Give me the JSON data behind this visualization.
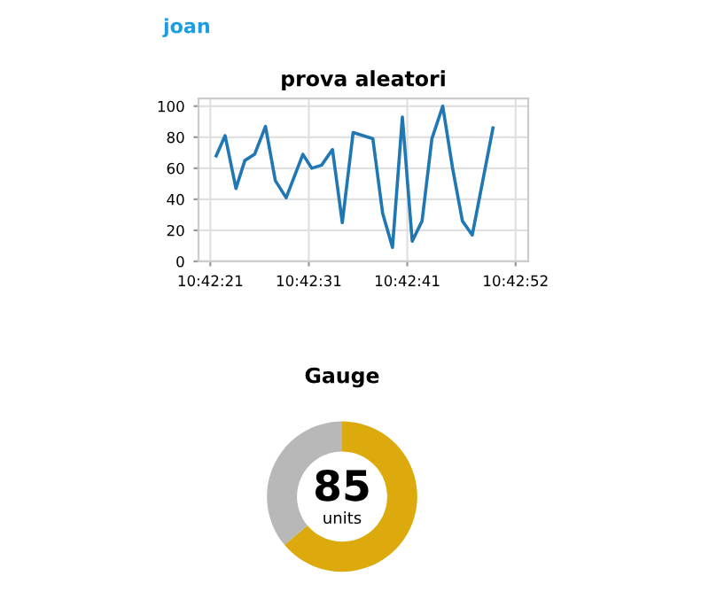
{
  "chart_data": [
    {
      "type": "line",
      "title": "prova aleatori",
      "annotations": [
        "joan"
      ],
      "x": [
        10.706,
        10.70625,
        10.706556,
        10.706806,
        10.707083,
        10.707389,
        10.707667,
        10.707972,
        10.708444,
        10.708694,
        10.708972,
        10.709278,
        10.709556,
        10.709861,
        10.710139,
        10.710417,
        10.710694,
        10.710972,
        10.71125,
        10.711528,
        10.711806,
        10.712083,
        10.712389,
        10.712667,
        10.712944,
        10.713222,
        10.713806
      ],
      "series": [
        {
          "color": "#1f77b4",
          "values": [
            68,
            81,
            47,
            65,
            69,
            87,
            52,
            41,
            69,
            60,
            62,
            72,
            25,
            83,
            81,
            79,
            31,
            9,
            93,
            13,
            26,
            79,
            100,
            60,
            26,
            17,
            86
          ]
        }
      ],
      "xlim": [
        10.7055,
        10.7148
      ],
      "xticks": [
        {
          "value": 10.705833,
          "label": "10:42:21"
        },
        {
          "value": 10.708611,
          "label": "10:42:31"
        },
        {
          "value": 10.711389,
          "label": "10:42:41"
        },
        {
          "value": 10.714444,
          "label": "10:42:52"
        }
      ],
      "ylim": [
        0,
        105
      ],
      "yticks": [
        0,
        20,
        40,
        60,
        80,
        100
      ],
      "grid": true,
      "legend": false
    },
    {
      "type": "donut",
      "title": "Gauge",
      "categories": [
        null,
        null
      ],
      "values": [
        85,
        48
      ],
      "colors": [
        "#dcaa0c",
        "#b8b8b8"
      ],
      "value_labels": [
        "85",
        null
      ],
      "annotations": [
        "units"
      ]
    }
  ]
}
